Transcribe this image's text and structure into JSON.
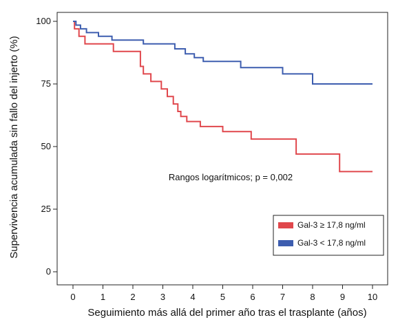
{
  "chart_data": {
    "type": "line",
    "step": true,
    "title": "",
    "xlabel": "Seguimiento más allá del primer año tras el trasplante (años)",
    "ylabel": "Supervivencia acumulada sin fallo del injerto (%)",
    "xlim": [
      0,
      10
    ],
    "ylim": [
      0,
      100
    ],
    "xticks": [
      0,
      1,
      2,
      3,
      4,
      5,
      6,
      7,
      8,
      9,
      10
    ],
    "yticks": [
      0,
      25,
      50,
      75,
      100
    ],
    "grid": false,
    "legend_position": "bottom-right",
    "annotation": "Rangos logarítmicos; p = 0,002",
    "series": [
      {
        "name": "Gal-3 ≥ 17,8 ng/ml",
        "color": "#e0474c",
        "x": [
          0,
          0.05,
          0.2,
          0.4,
          1.35,
          2.25,
          2.35,
          2.6,
          2.95,
          3.15,
          3.35,
          3.5,
          3.6,
          3.8,
          4.25,
          5.0,
          5.95,
          7.45,
          8.9,
          10.0
        ],
        "y": [
          100,
          97,
          94,
          91,
          88,
          82,
          79,
          76,
          73,
          70,
          67,
          64,
          62,
          60,
          58,
          56,
          53,
          47,
          40,
          40
        ]
      },
      {
        "name": "Gal-3 < 17,8 ng/ml",
        "color": "#3d5daf",
        "x": [
          0,
          0.1,
          0.25,
          0.45,
          0.85,
          1.3,
          2.35,
          3.4,
          3.75,
          4.05,
          4.35,
          5.6,
          7.0,
          8.0,
          10.0
        ],
        "y": [
          100,
          98.5,
          97,
          95.5,
          94,
          92.5,
          91,
          89,
          87,
          85.5,
          84,
          81.5,
          79,
          75,
          75
        ]
      }
    ]
  }
}
